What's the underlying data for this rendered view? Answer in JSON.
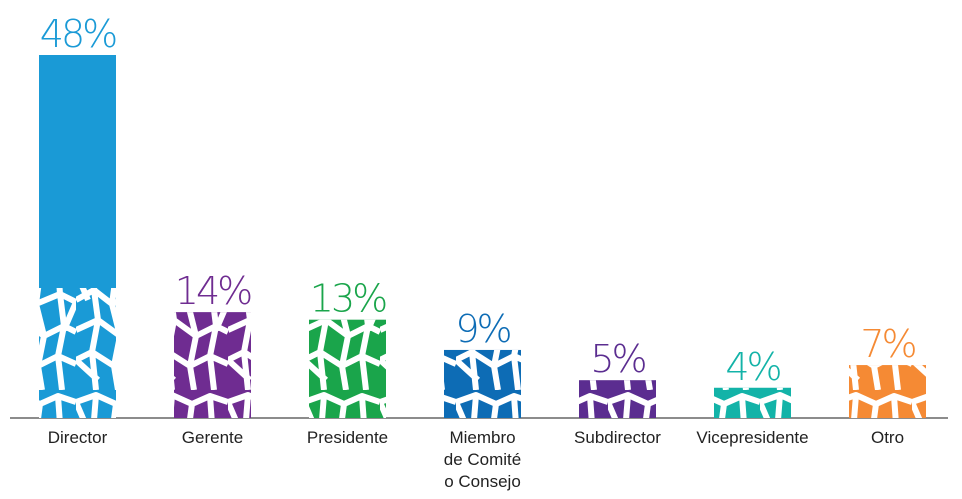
{
  "chart_data": {
    "type": "bar",
    "categories": [
      "Director",
      "Gerente",
      "Presidente",
      "Miembro\nde Comité\no Consejo",
      "Subdirector",
      "Vicepresidente",
      "Otro"
    ],
    "values": [
      48,
      14,
      13,
      9,
      5,
      4,
      7
    ],
    "value_labels": [
      "48%",
      "14%",
      "13%",
      "9%",
      "5%",
      "4%",
      "7%"
    ],
    "colors": [
      "#1a9ad6",
      "#6f2c91",
      "#1aa54b",
      "#0d6cb5",
      "#5b2d90",
      "#13b3a8",
      "#f58a34"
    ]
  }
}
